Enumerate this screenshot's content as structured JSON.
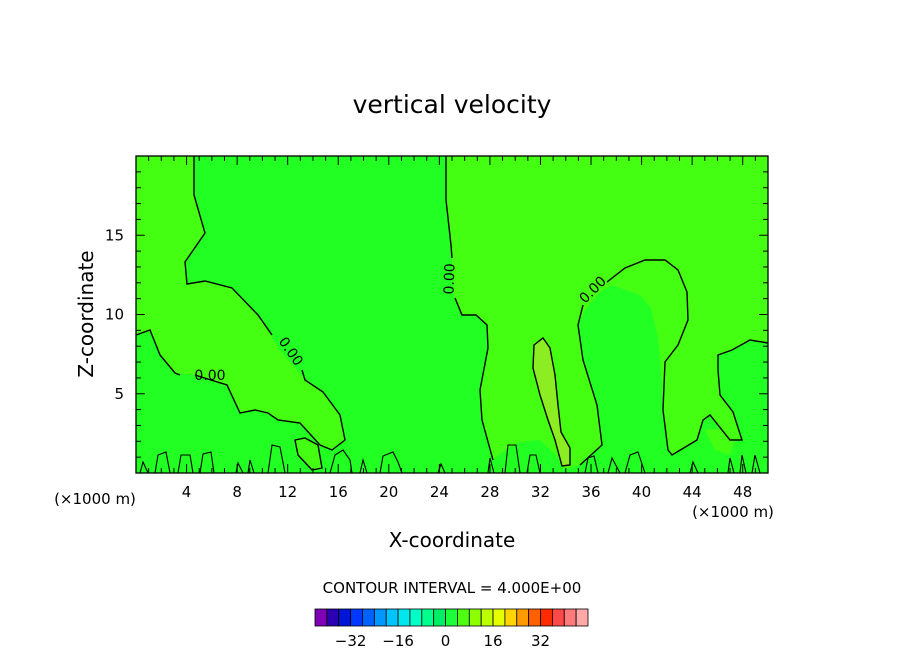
{
  "chart_data": {
    "type": "contour",
    "title": "vertical velocity",
    "xlabel": "X-coordinate",
    "ylabel": "Z-coordinate",
    "x_unit_left": "(×1000 m)",
    "x_unit_right": "(×1000 m)",
    "xlim": [
      0,
      50
    ],
    "ylim": [
      0,
      20
    ],
    "x_ticks": [
      4,
      8,
      12,
      16,
      20,
      24,
      28,
      32,
      36,
      40,
      44,
      48
    ],
    "y_ticks": [
      5,
      10,
      15
    ],
    "contour_interval_text": "CONTOUR INTERVAL = 4.000E+00",
    "contour_labels": [
      "0.00",
      "0.00",
      "0.00",
      "0.00"
    ],
    "colorbar": {
      "tick_labels": [
        "−32",
        "−16",
        "0",
        "16",
        "32"
      ],
      "colors": [
        "#7f00b2",
        "#2a00b0",
        "#0015d6",
        "#0038ff",
        "#0062ff",
        "#0098ff",
        "#00c4ff",
        "#00e8ee",
        "#00ffc4",
        "#00ff8c",
        "#00ee66",
        "#1cff38",
        "#4fff12",
        "#8cff00",
        "#bcff00",
        "#e6ff00",
        "#ffd400",
        "#ff9a00",
        "#ff6000",
        "#ff2a00",
        "#ff4848",
        "#ff7a7a",
        "#ffa8a8"
      ]
    },
    "fill_colors": {
      "background": "#22ff22",
      "positive": "#44ff11",
      "peak": "#8cee22"
    }
  }
}
